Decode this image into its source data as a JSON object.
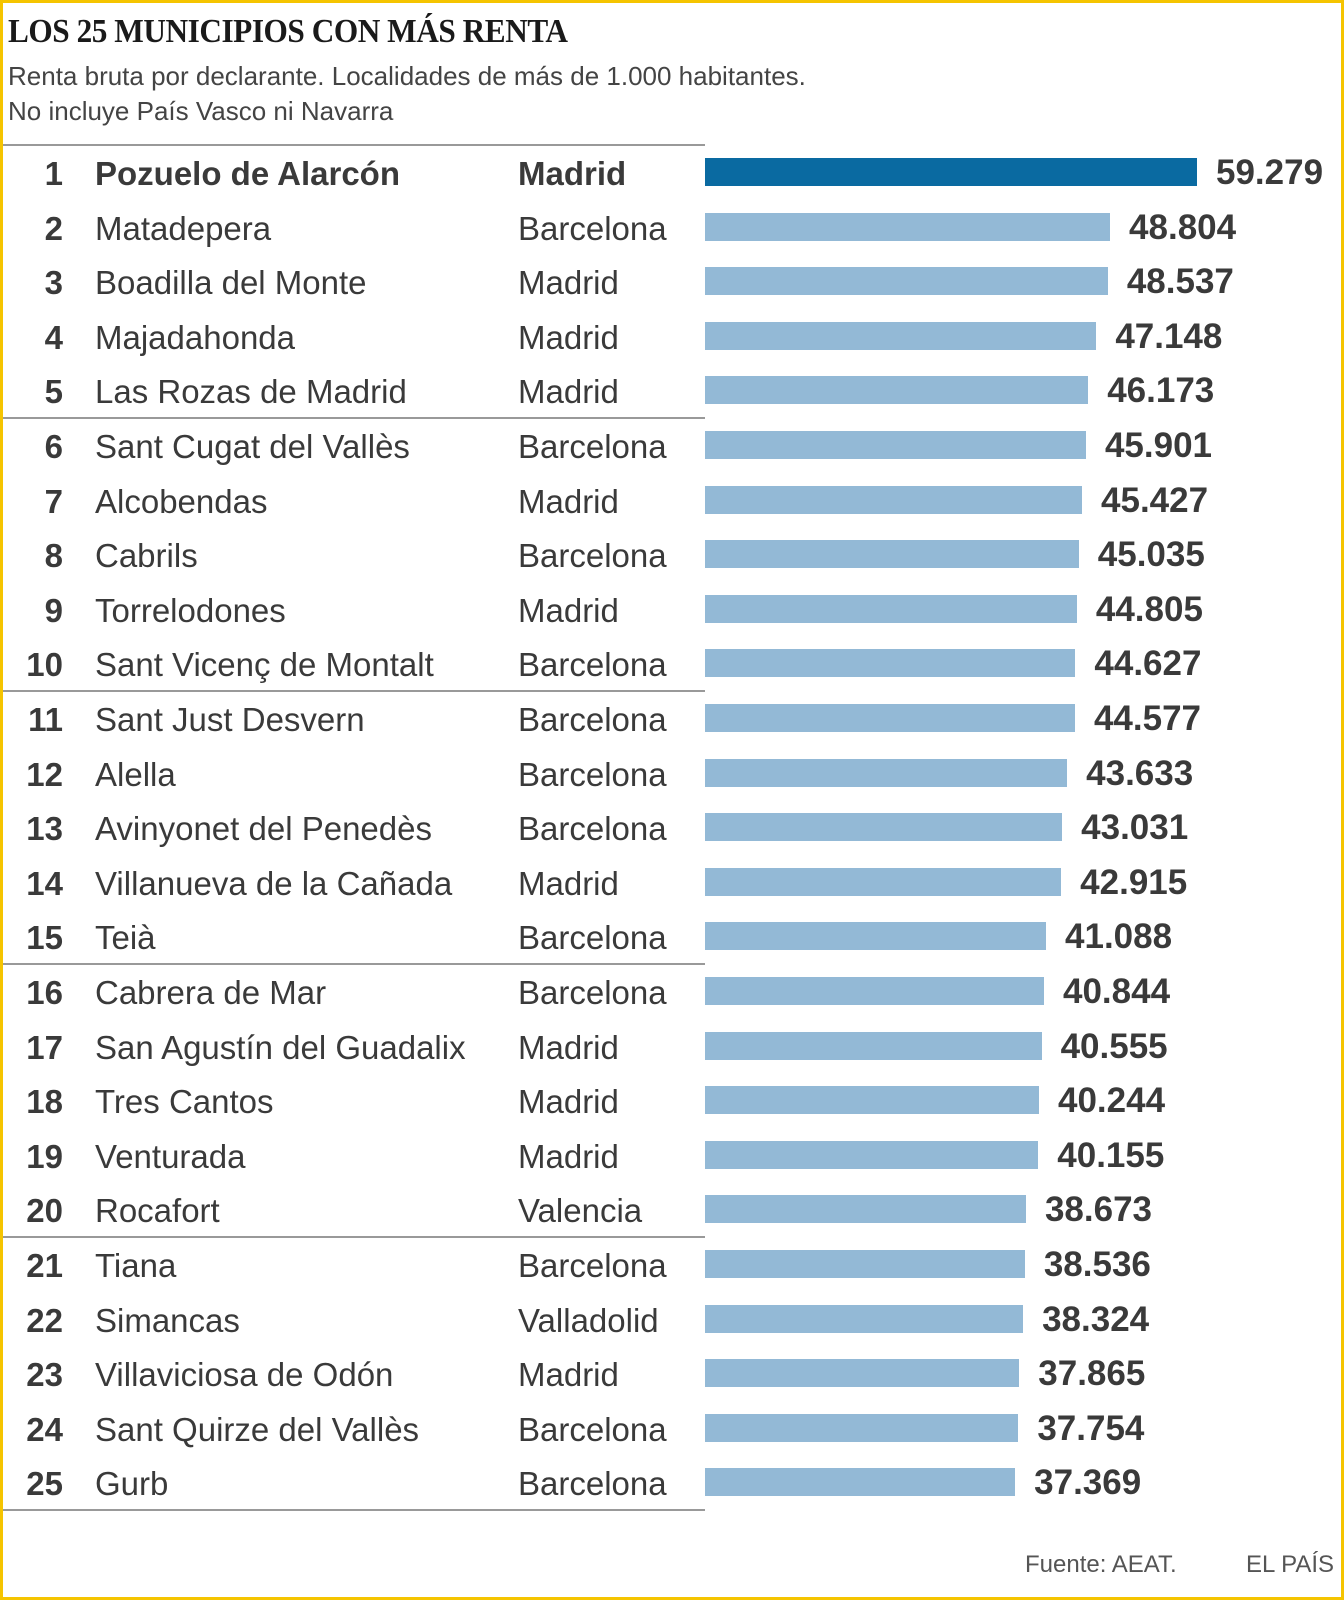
{
  "title": "LOS 25 MUNICIPIOS CON MÁS RENTA",
  "subtitle_lines": [
    "Renta bruta por declarante. Localidades de más de 1.000 habitantes.",
    "No incluye País Vasco ni Navarra"
  ],
  "source": "Fuente: AEAT.",
  "credit": "EL PAÍS",
  "colors": {
    "highlight_bar": "#0a6aa1",
    "bar": "#93b9d6",
    "border": "#f5c400"
  },
  "chart_data": {
    "type": "bar",
    "orientation": "horizontal",
    "title": "LOS 25 MUNICIPIOS CON MÁS RENTA",
    "xlim": [
      0,
      59279
    ],
    "grid": false,
    "rows": [
      {
        "rank": "1",
        "name": "Pozuelo de Alarcón",
        "province": "Madrid",
        "value": 59279,
        "label": "59.279"
      },
      {
        "rank": "2",
        "name": "Matadepera",
        "province": "Barcelona",
        "value": 48804,
        "label": "48.804"
      },
      {
        "rank": "3",
        "name": "Boadilla del Monte",
        "province": "Madrid",
        "value": 48537,
        "label": "48.537"
      },
      {
        "rank": "4",
        "name": "Majadahonda",
        "province": "Madrid",
        "value": 47148,
        "label": "47.148"
      },
      {
        "rank": "5",
        "name": "Las Rozas de Madrid",
        "province": "Madrid",
        "value": 46173,
        "label": "46.173"
      },
      {
        "rank": "6",
        "name": "Sant Cugat del Vallès",
        "province": "Barcelona",
        "value": 45901,
        "label": "45.901"
      },
      {
        "rank": "7",
        "name": "Alcobendas",
        "province": "Madrid",
        "value": 45427,
        "label": "45.427"
      },
      {
        "rank": "8",
        "name": "Cabrils",
        "province": "Barcelona",
        "value": 45035,
        "label": "45.035"
      },
      {
        "rank": "9",
        "name": "Torrelodones",
        "province": "Madrid",
        "value": 44805,
        "label": "44.805"
      },
      {
        "rank": "10",
        "name": "Sant Vicenç de Montalt",
        "province": "Barcelona",
        "value": 44627,
        "label": "44.627"
      },
      {
        "rank": "11",
        "name": "Sant Just Desvern",
        "province": "Barcelona",
        "value": 44577,
        "label": "44.577"
      },
      {
        "rank": "12",
        "name": "Alella",
        "province": "Barcelona",
        "value": 43633,
        "label": "43.633"
      },
      {
        "rank": "13",
        "name": "Avinyonet del Penedès",
        "province": "Barcelona",
        "value": 43031,
        "label": "43.031"
      },
      {
        "rank": "14",
        "name": "Villanueva de la Cañada",
        "province": "Madrid",
        "value": 42915,
        "label": "42.915"
      },
      {
        "rank": "15",
        "name": "Teià",
        "province": "Barcelona",
        "value": 41088,
        "label": "41.088"
      },
      {
        "rank": "16",
        "name": "Cabrera de Mar",
        "province": "Barcelona",
        "value": 40844,
        "label": "40.844"
      },
      {
        "rank": "17",
        "name": "San Agustín del Guadalix",
        "province": "Madrid",
        "value": 40555,
        "label": "40.555"
      },
      {
        "rank": "18",
        "name": "Tres Cantos",
        "province": "Madrid",
        "value": 40244,
        "label": "40.244"
      },
      {
        "rank": "19",
        "name": "Venturada",
        "province": "Madrid",
        "value": 40155,
        "label": "40.155"
      },
      {
        "rank": "20",
        "name": "Rocafort",
        "province": "Valencia",
        "value": 38673,
        "label": "38.673"
      },
      {
        "rank": "21",
        "name": "Tiana",
        "province": "Barcelona",
        "value": 38536,
        "label": "38.536"
      },
      {
        "rank": "22",
        "name": "Simancas",
        "province": "Valladolid",
        "value": 38324,
        "label": "38.324"
      },
      {
        "rank": "23",
        "name": "Villaviciosa de Odón",
        "province": "Madrid",
        "value": 37865,
        "label": "37.865"
      },
      {
        "rank": "24",
        "name": "Sant Quirze del Vallès",
        "province": "Barcelona",
        "value": 37754,
        "label": "37.754"
      },
      {
        "rank": "25",
        "name": "Gurb",
        "province": "Barcelona",
        "value": 37369,
        "label": "37.369"
      }
    ]
  }
}
